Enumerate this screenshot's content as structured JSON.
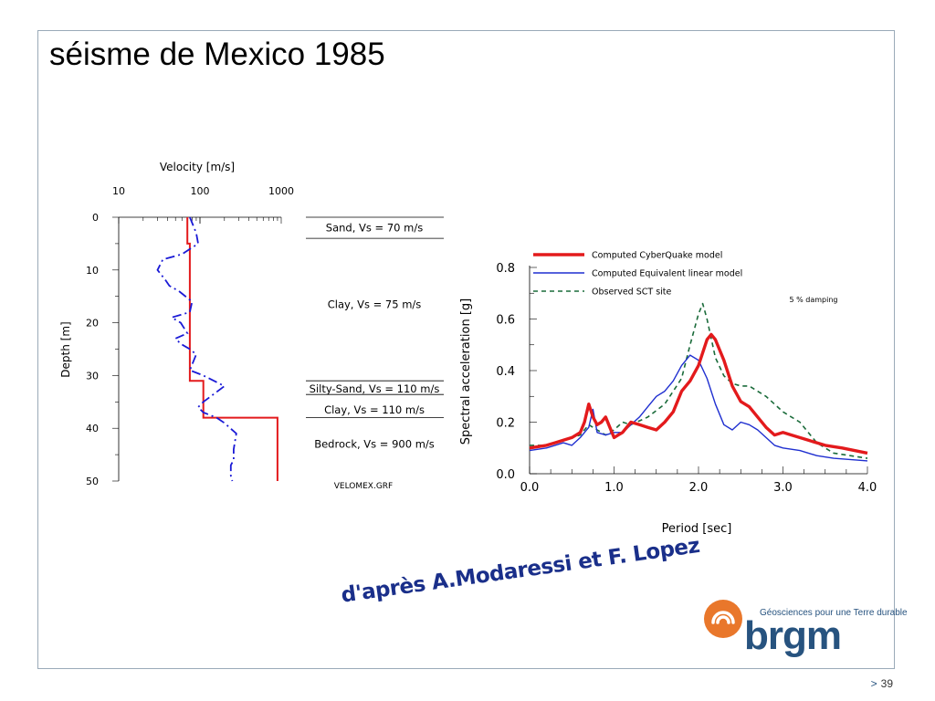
{
  "slide": {
    "title": "séisme de Mexico 1985",
    "credit": "d'après A.Modaressi et F. Lopez",
    "logo": {
      "word": "brgm",
      "tagline": "Géosciences pour une Terre durable"
    },
    "page_marker": ">",
    "page_number": "39"
  },
  "colors": {
    "profile_computed": "#e31a1c",
    "profile_observed": "#1a1ad6",
    "cyberquake": "#e31a1c",
    "equivalent_linear": "#1f2fd0",
    "observed_sct": "#1a6b3a",
    "credit_text": "#1a2f8a",
    "brgm_blue": "#27537f",
    "brgm_orange": "#e9772b"
  },
  "chart_data": [
    {
      "type": "line",
      "title": "Velocity [m/s]",
      "xlabel": "Velocity [m/s]",
      "ylabel": "Depth [m]",
      "xscale": "log",
      "xlim": [
        10,
        1000
      ],
      "ylim": [
        0,
        50
      ],
      "y_inverted": true,
      "x_tick_labels": [
        "10",
        "100",
        "1000"
      ],
      "y_tick_labels": [
        "0",
        "10",
        "20",
        "30",
        "40",
        "50"
      ],
      "grid": false,
      "file_label": "VELOMEX.GRF",
      "layers": [
        {
          "label": "Sand, Vs = 70 m/s"
        },
        {
          "label": "Clay, Vs = 75 m/s"
        },
        {
          "label": "Silty-Sand, Vs = 110 m/s"
        },
        {
          "label": "Clay, Vs = 110 m/s"
        },
        {
          "label": "Bedrock, Vs = 900 m/s"
        }
      ],
      "series": [
        {
          "key": "computed",
          "style": "solid",
          "x": [
            70,
            70,
            75,
            75,
            110,
            110,
            900,
            900
          ],
          "y": [
            0,
            5,
            5,
            31,
            31,
            38,
            38,
            50
          ]
        },
        {
          "key": "observed",
          "style": "dashdot",
          "x": [
            75,
            90,
            95,
            60,
            35,
            30,
            38,
            42,
            55,
            80,
            75,
            45,
            58,
            70,
            50,
            58,
            75,
            90,
            75,
            110,
            200,
            110,
            95,
            110,
            160,
            200,
            280,
            260,
            260,
            240,
            240,
            250
          ],
          "y": [
            0,
            3,
            5,
            7,
            8,
            10,
            12,
            13,
            14,
            16,
            18,
            19,
            20,
            22,
            23,
            24,
            25,
            26,
            29,
            30,
            32,
            35,
            36,
            37,
            38,
            39,
            41,
            44,
            46,
            47,
            49,
            50
          ]
        }
      ]
    },
    {
      "type": "line",
      "title": "",
      "xlabel": "Period [sec]",
      "ylabel": "Spectral acceleration [g]",
      "xlim": [
        0,
        4
      ],
      "ylim": [
        0,
        0.8
      ],
      "x_tick_labels": [
        "0.0",
        "1.0",
        "2.0",
        "3.0",
        "4.0"
      ],
      "y_tick_labels": [
        "0.0",
        "0.2",
        "0.4",
        "0.6",
        "0.8"
      ],
      "grid": false,
      "legend_position": "top-left",
      "annotation": "5 % damping",
      "series": [
        {
          "name": "Computed CyberQuake model",
          "key": "cyberquake",
          "style": "solid-thick",
          "x": [
            0,
            0.2,
            0.3,
            0.4,
            0.5,
            0.6,
            0.65,
            0.7,
            0.75,
            0.8,
            0.85,
            0.9,
            0.95,
            1.0,
            1.05,
            1.1,
            1.2,
            1.3,
            1.4,
            1.5,
            1.6,
            1.7,
            1.8,
            1.9,
            2.0,
            2.1,
            2.15,
            2.2,
            2.3,
            2.4,
            2.5,
            2.6,
            2.7,
            2.8,
            2.9,
            3.0,
            3.1,
            3.3,
            3.5,
            3.7,
            4.0
          ],
          "y": [
            0.1,
            0.11,
            0.12,
            0.13,
            0.14,
            0.16,
            0.2,
            0.27,
            0.22,
            0.19,
            0.2,
            0.22,
            0.18,
            0.14,
            0.15,
            0.16,
            0.2,
            0.19,
            0.18,
            0.17,
            0.2,
            0.24,
            0.32,
            0.36,
            0.42,
            0.52,
            0.54,
            0.52,
            0.44,
            0.34,
            0.28,
            0.26,
            0.22,
            0.18,
            0.15,
            0.16,
            0.15,
            0.13,
            0.11,
            0.1,
            0.08
          ]
        },
        {
          "name": "Computed Equivalent linear model",
          "key": "equivalent_linear",
          "style": "solid",
          "x": [
            0,
            0.2,
            0.3,
            0.4,
            0.5,
            0.6,
            0.7,
            0.75,
            0.8,
            0.9,
            1.0,
            1.1,
            1.2,
            1.3,
            1.4,
            1.5,
            1.6,
            1.7,
            1.8,
            1.9,
            2.0,
            2.1,
            2.2,
            2.3,
            2.4,
            2.5,
            2.6,
            2.7,
            2.8,
            2.9,
            3.0,
            3.2,
            3.4,
            3.6,
            4.0
          ],
          "y": [
            0.09,
            0.1,
            0.11,
            0.12,
            0.11,
            0.14,
            0.18,
            0.25,
            0.16,
            0.15,
            0.16,
            0.16,
            0.19,
            0.22,
            0.26,
            0.3,
            0.32,
            0.36,
            0.42,
            0.46,
            0.44,
            0.37,
            0.27,
            0.19,
            0.17,
            0.2,
            0.19,
            0.17,
            0.14,
            0.11,
            0.1,
            0.09,
            0.07,
            0.06,
            0.05
          ]
        },
        {
          "name": "Observed SCT site",
          "key": "observed_sct",
          "style": "dashed",
          "x": [
            0,
            0.2,
            0.4,
            0.6,
            0.7,
            0.8,
            0.9,
            1.0,
            1.1,
            1.2,
            1.4,
            1.6,
            1.7,
            1.8,
            1.9,
            2.0,
            2.05,
            2.1,
            2.2,
            2.3,
            2.4,
            2.5,
            2.6,
            2.8,
            3.0,
            3.2,
            3.4,
            3.6,
            4.0
          ],
          "y": [
            0.11,
            0.11,
            0.13,
            0.15,
            0.19,
            0.17,
            0.15,
            0.17,
            0.2,
            0.19,
            0.22,
            0.27,
            0.32,
            0.37,
            0.5,
            0.62,
            0.66,
            0.6,
            0.45,
            0.38,
            0.35,
            0.34,
            0.34,
            0.3,
            0.24,
            0.2,
            0.12,
            0.08,
            0.06
          ]
        }
      ]
    }
  ]
}
